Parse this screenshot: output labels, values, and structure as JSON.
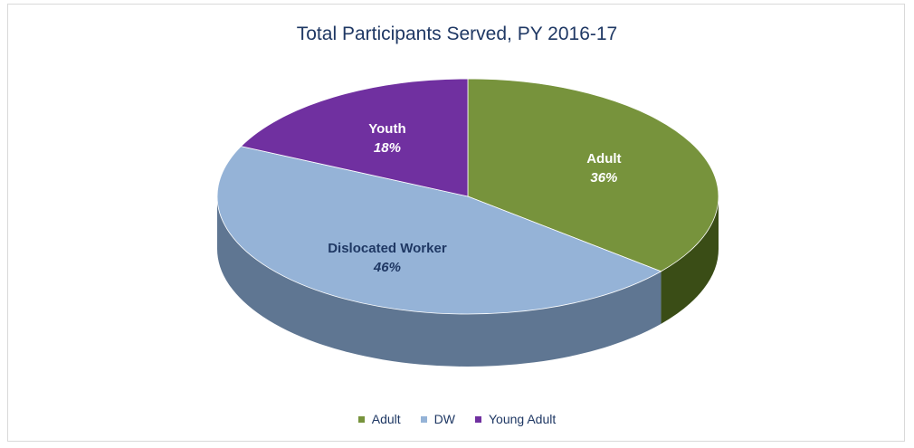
{
  "chart_data": {
    "type": "pie",
    "title": "Total Participants Served, PY 2016-17",
    "slices": [
      {
        "key": "adult",
        "label": "Adult",
        "percent_label": "36%",
        "value": 36,
        "legend": "Adult",
        "color": "#77933c",
        "side_color": "#3a4d16",
        "label_color": "#ffffff"
      },
      {
        "key": "dw",
        "label": "Dislocated Worker",
        "percent_label": "46%",
        "value": 46,
        "legend": "DW",
        "color": "#95b3d7",
        "side_color": "#5f7692",
        "label_color": "#1f3864"
      },
      {
        "key": "youth",
        "label": "Youth",
        "percent_label": "18%",
        "value": 18,
        "legend": "Young Adult",
        "color": "#7030a0",
        "side_color": "#3f1a5c",
        "label_color": "#ffffff"
      }
    ],
    "legend_position": "bottom"
  }
}
